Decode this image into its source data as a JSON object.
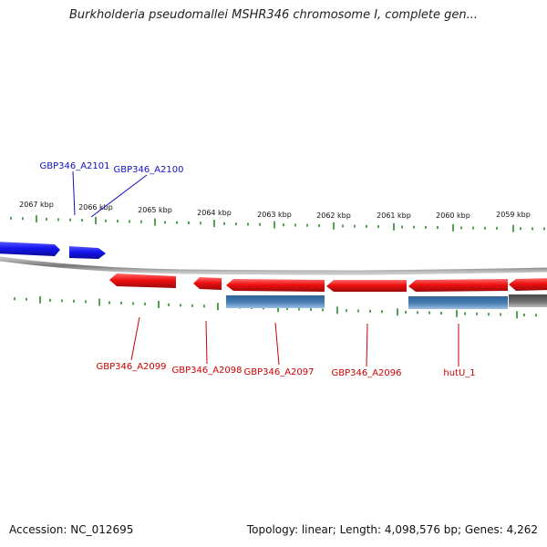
{
  "title": "Burkholderia pseudomallei MSHR346 chromosome I, complete gen...",
  "footer": {
    "accession": "Accession: NC_012695",
    "summary": "Topology: linear; Length: 4,098,576 bp; Genes: 4,262"
  },
  "colors": {
    "forward_gene": "#1515f0",
    "reverse_gene": "#f01010",
    "cds_feature": "#4a7fb5",
    "grey_feature": "#6e6e6e",
    "backbone": "#8a8a8a",
    "ticks": "#2a8a2a",
    "forward_label": "#1010c0",
    "reverse_label": "#cc0000"
  },
  "scale": {
    "tick_labels": [
      "2067 kbp",
      "2066 kbp",
      "2065 kbp",
      "2064 kbp",
      "2063 kbp",
      "2062 kbp",
      "2061 kbp",
      "2060 kbp",
      "2059 kbp"
    ]
  },
  "genes": {
    "forward": [
      "GBP346_A2101",
      "GBP346_A2100"
    ],
    "reverse": [
      "GBP346_A2099",
      "GBP346_A2098",
      "GBP346_A2097",
      "GBP346_A2096",
      "hutU_1"
    ]
  }
}
